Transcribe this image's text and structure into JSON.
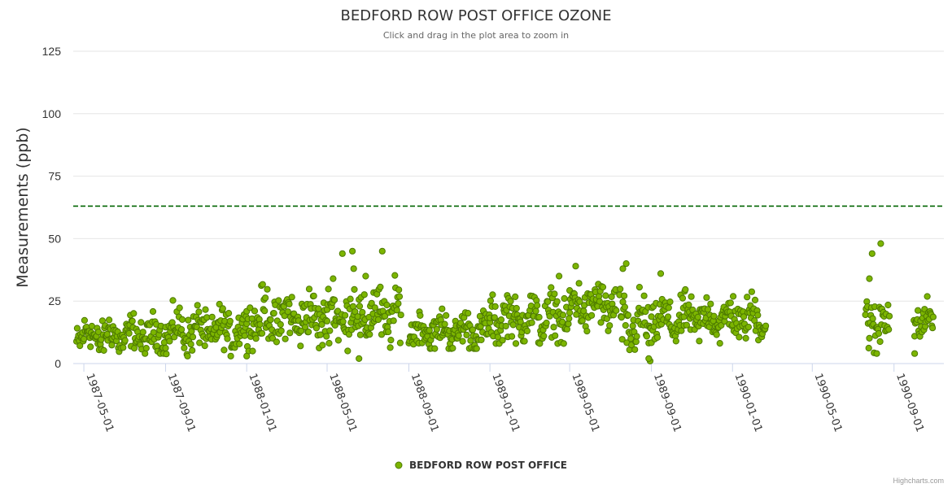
{
  "chart_data": {
    "type": "scatter",
    "title": "BEDFORD ROW POST OFFICE OZONE",
    "subtitle": "Click and drag in the plot area to zoom in",
    "ylabel": "Measurements (ppb)",
    "xlabel": "",
    "ylim": [
      0,
      125
    ],
    "yticks": [
      0,
      25,
      50,
      75,
      100,
      125
    ],
    "xlim": [
      "1987-04-15",
      "1990-11-15"
    ],
    "xtick_labels": [
      "1987-05-01",
      "1987-09-01",
      "1988-01-01",
      "1988-05-01",
      "1988-09-01",
      "1989-01-01",
      "1989-05-01",
      "1989-09-01",
      "1990-01-01",
      "1990-05-01",
      "1990-09-01"
    ],
    "threshold": {
      "value": 63,
      "color": "#006400",
      "style": "dashed"
    },
    "series": [
      {
        "name": "BEDFORD ROW POST OFFICE",
        "color": "#7cb500",
        "border": "#4d7a00",
        "segments": [
          {
            "start": "1987-04-20",
            "end": "1987-09-01",
            "base": 11,
            "amp": 7,
            "low": 4,
            "high": 28
          },
          {
            "start": "1987-09-01",
            "end": "1988-01-01",
            "base": 13,
            "amp": 8,
            "low": 3,
            "high": 29
          },
          {
            "start": "1988-01-01",
            "end": "1988-05-01",
            "base": 18,
            "amp": 10,
            "low": 5,
            "high": 34
          },
          {
            "start": "1988-05-01",
            "end": "1988-08-20",
            "base": 19,
            "amp": 11,
            "low": 2,
            "high": 45
          },
          {
            "start": "1988-09-01",
            "end": "1989-01-01",
            "base": 13,
            "amp": 7,
            "low": 6,
            "high": 29
          },
          {
            "start": "1989-01-01",
            "end": "1989-05-01",
            "base": 18,
            "amp": 9,
            "low": 8,
            "high": 35
          },
          {
            "start": "1989-05-01",
            "end": "1989-07-10",
            "base": 23,
            "amp": 9,
            "low": 13,
            "high": 39
          },
          {
            "start": "1989-07-15",
            "end": "1989-09-01",
            "base": 15,
            "amp": 11,
            "low": 1,
            "high": 40
          },
          {
            "start": "1989-09-01",
            "end": "1989-10-20",
            "base": 17,
            "amp": 8,
            "low": 4,
            "high": 36
          },
          {
            "start": "1989-10-20",
            "end": "1990-02-20",
            "base": 18,
            "amp": 8,
            "low": 8,
            "high": 32
          },
          {
            "start": "1990-07-20",
            "end": "1990-08-25",
            "base": 17,
            "amp": 11,
            "low": 4,
            "high": 48
          },
          {
            "start": "1990-10-01",
            "end": "1990-10-30",
            "base": 17,
            "amp": 7,
            "low": 4,
            "high": 29
          }
        ],
        "spikes": [
          {
            "date": "1988-05-24",
            "value": 44
          },
          {
            "date": "1988-06-08",
            "value": 45
          },
          {
            "date": "1988-07-23",
            "value": 45
          },
          {
            "date": "1988-06-10",
            "value": 38
          },
          {
            "date": "1988-05-10",
            "value": 34
          },
          {
            "date": "1988-06-28",
            "value": 35
          },
          {
            "date": "1989-05-10",
            "value": 39
          },
          {
            "date": "1989-04-15",
            "value": 35
          },
          {
            "date": "1989-07-25",
            "value": 40
          },
          {
            "date": "1989-07-20",
            "value": 38
          },
          {
            "date": "1989-09-15",
            "value": 36
          },
          {
            "date": "1989-08-30",
            "value": 1
          },
          {
            "date": "1989-08-28",
            "value": 2
          },
          {
            "date": "1988-06-18",
            "value": 2
          },
          {
            "date": "1990-08-12",
            "value": 48
          },
          {
            "date": "1990-07-30",
            "value": 44
          },
          {
            "date": "1990-07-26",
            "value": 34
          },
          {
            "date": "1990-08-06",
            "value": 4
          },
          {
            "date": "1990-10-02",
            "value": 4
          },
          {
            "date": "1988-01-01",
            "value": 3
          }
        ]
      }
    ]
  },
  "legend": {
    "label": "BEDFORD ROW POST OFFICE"
  },
  "credits": "Highcharts.com"
}
